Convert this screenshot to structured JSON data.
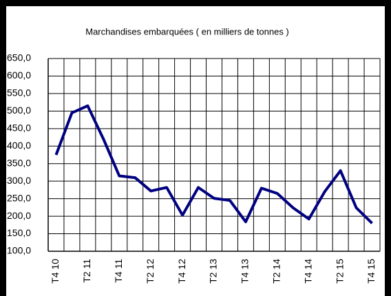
{
  "chart_data": {
    "type": "line",
    "title": "Marchandises embarquées ( en milliers de tonnes )",
    "categories": [
      "T4 10",
      null,
      "T2 11",
      null,
      "T4 11",
      null,
      "T2 12",
      null,
      "T4 12",
      null,
      "T2 13",
      null,
      "T4 13",
      null,
      "T2 14",
      null,
      "T4 14",
      null,
      "T2 15",
      null,
      "T4 15"
    ],
    "series": [
      {
        "color": "#000080",
        "values": [
          375,
          495,
          515,
          420,
          315,
          310,
          272,
          282,
          203,
          282,
          251,
          245,
          184,
          280,
          265,
          224,
          192,
          270,
          330,
          224,
          180
        ]
      }
    ],
    "ylim": [
      100,
      650
    ],
    "yticks": [
      {
        "value": 100,
        "label": "100,0"
      },
      {
        "value": 150,
        "label": "150,0"
      },
      {
        "value": 200,
        "label": "200,0"
      },
      {
        "value": 250,
        "label": "250,0"
      },
      {
        "value": 300,
        "label": "300,0"
      },
      {
        "value": 350,
        "label": "350,0"
      },
      {
        "value": 400,
        "label": "400,0"
      },
      {
        "value": 450,
        "label": "450,0"
      },
      {
        "value": 500,
        "label": "500,0"
      },
      {
        "value": 550,
        "label": "550,0"
      },
      {
        "value": 600,
        "label": "600,0"
      },
      {
        "value": 650,
        "label": "650,0"
      }
    ],
    "grid": true
  }
}
